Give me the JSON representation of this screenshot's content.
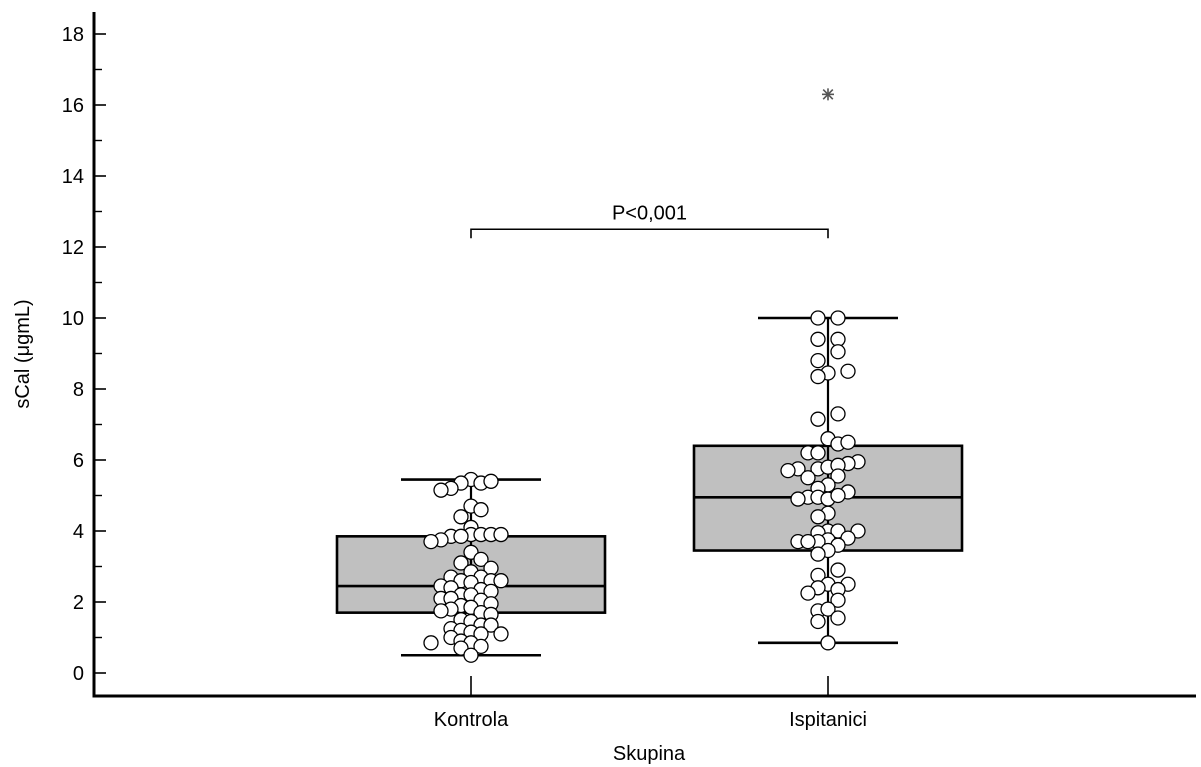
{
  "chart_data": {
    "type": "box",
    "xlabel": "Skupina",
    "ylabel": "sCal (μgmL)",
    "ylim": [
      -0.7,
      18.6
    ],
    "y_ticks_major": [
      0,
      2,
      4,
      6,
      8,
      10,
      12,
      14,
      16,
      18
    ],
    "y_ticks_minor": [
      1,
      3,
      5,
      7,
      9,
      11,
      13,
      15,
      17
    ],
    "categories": [
      "Kontrola",
      "Ispitanici"
    ],
    "groups": [
      {
        "category": "Kontrola",
        "whisker_low": 0.5,
        "q1": 1.7,
        "median": 2.45,
        "q3": 3.85,
        "whisker_high": 5.45,
        "points": [
          [
            0,
            5.45
          ],
          [
            -1,
            5.35
          ],
          [
            1,
            5.35
          ],
          [
            -2,
            5.2
          ],
          [
            -3,
            5.15
          ],
          [
            2,
            5.4
          ],
          [
            0,
            4.7
          ],
          [
            1,
            4.6
          ],
          [
            -1,
            4.4
          ],
          [
            0,
            4.1
          ],
          [
            -2,
            3.85
          ],
          [
            -3,
            3.75
          ],
          [
            -4,
            3.7
          ],
          [
            0,
            3.9
          ],
          [
            1,
            3.9
          ],
          [
            2,
            3.9
          ],
          [
            3,
            3.9
          ],
          [
            -1,
            3.85
          ],
          [
            0,
            3.4
          ],
          [
            1,
            3.2
          ],
          [
            -1,
            3.1
          ],
          [
            2,
            2.95
          ],
          [
            0,
            2.85
          ],
          [
            -2,
            2.7
          ],
          [
            1,
            2.7
          ],
          [
            -1,
            2.6
          ],
          [
            0,
            2.55
          ],
          [
            2,
            2.6
          ],
          [
            3,
            2.6
          ],
          [
            -3,
            2.45
          ],
          [
            -2,
            2.4
          ],
          [
            1,
            2.35
          ],
          [
            2,
            2.3
          ],
          [
            -1,
            2.2
          ],
          [
            0,
            2.2
          ],
          [
            -3,
            2.1
          ],
          [
            -2,
            2.1
          ],
          [
            1,
            2.05
          ],
          [
            2,
            1.95
          ],
          [
            -1,
            1.9
          ],
          [
            0,
            1.85
          ],
          [
            -2,
            1.8
          ],
          [
            -3,
            1.75
          ],
          [
            1,
            1.7
          ],
          [
            2,
            1.65
          ],
          [
            -1,
            1.5
          ],
          [
            0,
            1.45
          ],
          [
            1,
            1.35
          ],
          [
            2,
            1.35
          ],
          [
            -2,
            1.25
          ],
          [
            -1,
            1.2
          ],
          [
            0,
            1.15
          ],
          [
            1,
            1.1
          ],
          [
            3,
            1.1
          ],
          [
            -2,
            1.0
          ],
          [
            -1,
            0.9
          ],
          [
            0,
            0.85
          ],
          [
            -4,
            0.85
          ],
          [
            1,
            0.75
          ],
          [
            -1,
            0.7
          ],
          [
            0,
            0.5
          ]
        ],
        "outliers": []
      },
      {
        "category": "Ispitanici",
        "whisker_low": 0.85,
        "q1": 3.45,
        "median": 4.95,
        "q3": 6.4,
        "whisker_high": 10.0,
        "points": [
          [
            -1,
            10.0
          ],
          [
            1,
            10.0
          ],
          [
            -1,
            9.4
          ],
          [
            1,
            9.4
          ],
          [
            1,
            9.05
          ],
          [
            -1,
            8.8
          ],
          [
            2,
            8.5
          ],
          [
            0,
            8.45
          ],
          [
            -1,
            8.35
          ],
          [
            1,
            7.3
          ],
          [
            -1,
            7.15
          ],
          [
            0,
            6.6
          ],
          [
            1,
            6.45
          ],
          [
            2,
            6.5
          ],
          [
            -2,
            6.2
          ],
          [
            -1,
            6.2
          ],
          [
            3,
            5.95
          ],
          [
            2,
            5.9
          ],
          [
            -3,
            5.75
          ],
          [
            -4,
            5.7
          ],
          [
            -1,
            5.75
          ],
          [
            0,
            5.8
          ],
          [
            1,
            5.85
          ],
          [
            -2,
            5.5
          ],
          [
            1,
            5.55
          ],
          [
            0,
            5.3
          ],
          [
            -1,
            5.2
          ],
          [
            2,
            5.1
          ],
          [
            -2,
            4.95
          ],
          [
            -3,
            4.9
          ],
          [
            -1,
            4.95
          ],
          [
            0,
            4.9
          ],
          [
            1,
            5.0
          ],
          [
            0,
            4.5
          ],
          [
            -1,
            4.4
          ],
          [
            0,
            4.0
          ],
          [
            1,
            4.0
          ],
          [
            -1,
            3.95
          ],
          [
            3,
            4.0
          ],
          [
            2,
            3.8
          ],
          [
            0,
            3.75
          ],
          [
            -1,
            3.7
          ],
          [
            -3,
            3.7
          ],
          [
            -2,
            3.7
          ],
          [
            1,
            3.6
          ],
          [
            0,
            3.45
          ],
          [
            -1,
            3.35
          ],
          [
            1,
            2.9
          ],
          [
            -1,
            2.75
          ],
          [
            0,
            2.5
          ],
          [
            2,
            2.5
          ],
          [
            -1,
            2.4
          ],
          [
            1,
            2.35
          ],
          [
            -2,
            2.25
          ],
          [
            1,
            2.05
          ],
          [
            -1,
            1.75
          ],
          [
            0,
            1.8
          ],
          [
            1,
            1.55
          ],
          [
            -1,
            1.45
          ],
          [
            0,
            0.85
          ]
        ],
        "outliers": [
          16.3
        ]
      }
    ],
    "annotation": {
      "text": "P<0,001",
      "y": 12.5
    },
    "grid": false,
    "legend": "none"
  },
  "colors": {
    "box_fill": "#c0c0c0",
    "point_fill": "#ffffff",
    "stroke": "#000000",
    "outlier": "#555555"
  }
}
